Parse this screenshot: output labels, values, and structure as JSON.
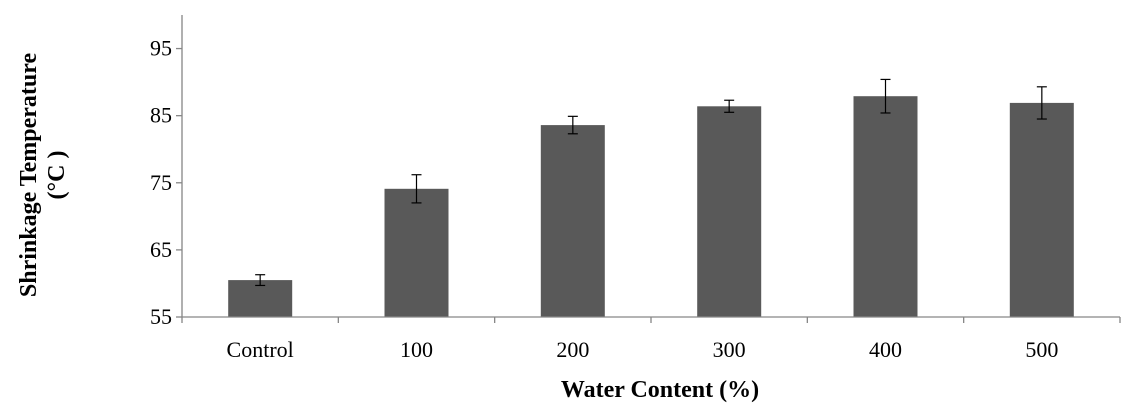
{
  "chart_data": {
    "type": "bar",
    "title": "",
    "xlabel": "Water Content (%)",
    "ylabel_lines": [
      "Shrinkage Temperature",
      "(°C )"
    ],
    "categories": [
      "Control",
      "100",
      "200",
      "300",
      "400",
      "500"
    ],
    "values": [
      60.5,
      74.1,
      83.6,
      86.4,
      87.9,
      86.9
    ],
    "error": [
      0.8,
      2.1,
      1.3,
      0.9,
      2.5,
      2.4
    ],
    "ylim": [
      55,
      100
    ],
    "yticks": [
      55,
      65,
      75,
      85,
      95
    ],
    "grid": false,
    "legend": "none",
    "bar_color": "#595959",
    "axis_color": "#868686"
  }
}
